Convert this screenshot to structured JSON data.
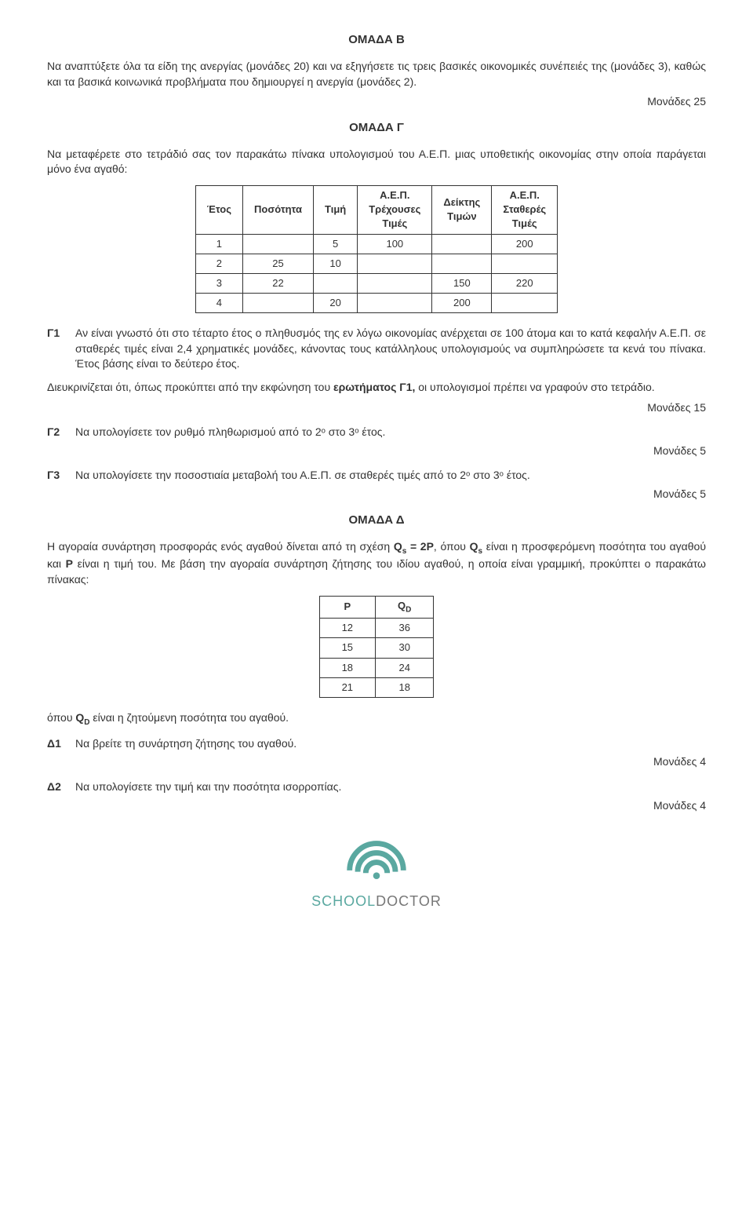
{
  "groupB": {
    "title": "ΟΜΑΔΑ Β",
    "text": "Να αναπτύξετε όλα τα είδη της ανεργίας (μονάδες 20) και να εξηγήσετε τις τρεις βασικές οικονομικές συνέπειές της (μονάδες 3), καθώς και τα βασικά κοινωνικά προβλήματα που δημιουργεί η ανεργία (μονάδες 2).",
    "points": "Μονάδες 25"
  },
  "groupC": {
    "title": "ΟΜΑΔΑ Γ",
    "intro": "Να μεταφέρετε στο τετράδιό σας τον παρακάτω πίνακα υπολογισμού του Α.Ε.Π. μιας υποθετικής οικονομίας στην οποία παράγεται μόνο ένα αγαθό:",
    "table": {
      "headers": [
        "Έτος",
        "Ποσότητα",
        "Τιμή",
        "Α.Ε.Π. Τρέχουσες Τιμές",
        "Δείκτης Τιμών",
        "Α.Ε.Π. Σταθερές Τιμές"
      ],
      "rows": [
        [
          "1",
          "",
          "5",
          "100",
          "",
          "200"
        ],
        [
          "2",
          "25",
          "10",
          "",
          "",
          ""
        ],
        [
          "3",
          "22",
          "",
          "",
          "150",
          "220"
        ],
        [
          "4",
          "",
          "20",
          "",
          "200",
          ""
        ]
      ]
    },
    "g1": {
      "label": "Γ1",
      "text": "Αν είναι γνωστό ότι στο τέταρτο έτος ο πληθυσμός της εν λόγω οικονομίας ανέρχεται σε 100 άτομα και το κατά κεφαλήν Α.Ε.Π. σε σταθερές τιμές είναι 2,4 χρηματικές μονάδες, κάνοντας τους κατάλληλους υπολογισμούς να συμπληρώσετε τα κενά του πίνακα. Έτος βάσης είναι το δεύτερο έτος."
    },
    "clarification_a": "Διευκρινίζεται ότι, όπως προκύπτει από την εκφώνηση του ",
    "clarification_bold": "ερωτήματος Γ1,",
    "clarification_b": " οι υπολογισμοί πρέπει να γραφούν στο τετράδιο.",
    "g1_points": "Μονάδες 15",
    "g2": {
      "label": "Γ2",
      "text": "Να υπολογίσετε τον ρυθμό πληθωρισμού από το 2ᵒ στο 3ᵒ έτος.",
      "points": "Μονάδες 5"
    },
    "g3": {
      "label": "Γ3",
      "text": "Να υπολογίσετε την ποσοστιαία μεταβολή του Α.Ε.Π. σε σταθερές τιμές από το 2ᵒ στο 3ᵒ έτος.",
      "points": "Μονάδες 5"
    }
  },
  "groupD": {
    "title": "ΟΜΑΔΑ Δ",
    "intro_a": "Η αγοραία συνάρτηση προσφοράς ενός αγαθού δίνεται από τη σχέση ",
    "intro_eq": "Qₛ = 2P",
    "intro_b": ", όπου ",
    "intro_qs": "Qₛ",
    "intro_c": " είναι η προσφερόμενη ποσότητα του αγαθού και ",
    "intro_p": "P",
    "intro_d": " είναι η τιμή του. Με βάση την αγοραία συνάρτηση ζήτησης του ιδίου αγαθού, η οποία είναι γραμμική, προκύπτει ο παρακάτω πίνακας:",
    "table": {
      "headers": [
        "P",
        "Q_D"
      ],
      "rows": [
        [
          "12",
          "36"
        ],
        [
          "15",
          "30"
        ],
        [
          "18",
          "24"
        ],
        [
          "21",
          "18"
        ]
      ]
    },
    "footer_a": "όπου ",
    "footer_qd": "Q_D",
    "footer_b": " είναι η ζητούμενη ποσότητα του αγαθού.",
    "d1": {
      "label": "Δ1",
      "text": "Να βρείτε τη συνάρτηση ζήτησης του αγαθού.",
      "points": "Μονάδες 4"
    },
    "d2": {
      "label": "Δ2",
      "text": "Να υπολογίσετε την τιμή και την ποσότητα ισορροπίας.",
      "points": "Μονάδες 4"
    }
  },
  "logo": {
    "text1": "SCHOOL",
    "text2": "DOCTOR"
  },
  "colors": {
    "text": "#333333",
    "border": "#333333",
    "logo_teal": "#5aa8a0",
    "logo_grey": "#777777",
    "bg": "#ffffff"
  }
}
